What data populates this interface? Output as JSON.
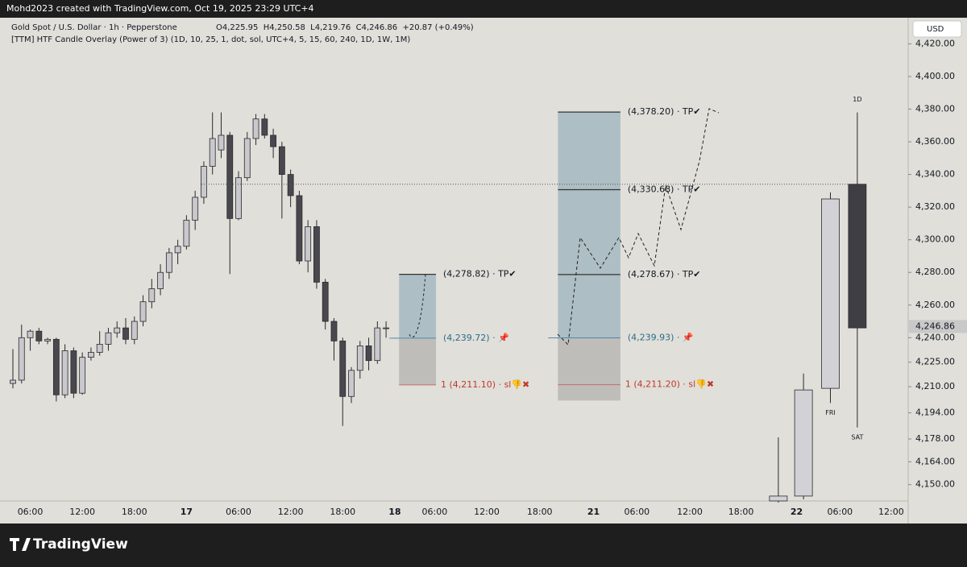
{
  "header": {
    "attribution": "Mohd2023 created with TradingView.com, Oct 19, 2025 23:29 UTC+4",
    "symbol_line": "Gold Spot / U.S. Dollar · 1h · Pepperstone",
    "ohlc_line": "O4,225.95  H4,250.58  L4,219.76  C4,246.86  +20.87 (+0.49%)",
    "indicator_line": "[TTM] HTF Candle Overlay (Power of 3) (1D, 10, 25, 1, dot, sol, UTC+4, 5, 15, 60, 240, 1D, 1W, 1M)",
    "currency": "USD"
  },
  "footer": {
    "brand": "TradingView"
  },
  "chart_data": {
    "type": "candlestick",
    "grid": false,
    "up_color": "#c8c8cd",
    "down_color": "#48484e",
    "xlim": [
      -1.486,
      103.16
    ],
    "ylim": [
      4140,
      4436
    ],
    "xticks": [
      {
        "value": 2,
        "label": "06:00"
      },
      {
        "value": 8,
        "label": "12:00"
      },
      {
        "value": 14,
        "label": "18:00"
      },
      {
        "value": 20,
        "label": "17"
      },
      {
        "value": 26,
        "label": "06:00"
      },
      {
        "value": 32,
        "label": "12:00"
      },
      {
        "value": 38,
        "label": "18:00"
      },
      {
        "value": 44,
        "label": "18"
      },
      {
        "value": 48.6,
        "label": "06:00"
      },
      {
        "value": 54.6,
        "label": "12:00"
      },
      {
        "value": 60.7,
        "label": "18:00"
      },
      {
        "value": 66.9,
        "label": "21"
      },
      {
        "value": 71.9,
        "label": "06:00"
      },
      {
        "value": 78,
        "label": "12:00"
      },
      {
        "value": 83.9,
        "label": "18:00"
      },
      {
        "value": 90.3,
        "label": "22"
      },
      {
        "value": 95.3,
        "label": "06:00"
      },
      {
        "value": 101.2,
        "label": "12:00"
      }
    ],
    "yticks": [
      {
        "value": 4420,
        "label": "4,420.00"
      },
      {
        "value": 4400,
        "label": "4,400.00"
      },
      {
        "value": 4380,
        "label": "4,380.00"
      },
      {
        "value": 4360,
        "label": "4,360.00"
      },
      {
        "value": 4340,
        "label": "4,340.00"
      },
      {
        "value": 4320,
        "label": "4,320.00"
      },
      {
        "value": 4300,
        "label": "4,300.00"
      },
      {
        "value": 4280,
        "label": "4,280.00"
      },
      {
        "value": 4260,
        "label": "4,260.00"
      },
      {
        "value": 4240,
        "label": "4,240.00"
      },
      {
        "value": 4225,
        "label": "4,225.00"
      },
      {
        "value": 4210,
        "label": "4,210.00"
      },
      {
        "value": 4194,
        "label": "4,194.00"
      },
      {
        "value": 4178,
        "label": "4,178.00"
      },
      {
        "value": 4164,
        "label": "4,164.00"
      },
      {
        "value": 4150,
        "label": "4,150.00"
      }
    ],
    "last_price": {
      "value": 4246.86,
      "label": "4,246.86"
    },
    "x": [
      0,
      1,
      2,
      3,
      4,
      5,
      6,
      7,
      8,
      9,
      10,
      11,
      12,
      13,
      14,
      15,
      16,
      17,
      18,
      19,
      20,
      21,
      22,
      23,
      24,
      25,
      26,
      27,
      28,
      29,
      30,
      31,
      32,
      33,
      34,
      35,
      36,
      37,
      38,
      39,
      40,
      41,
      42,
      43
    ],
    "ohlc": [
      [
        4212,
        4233,
        4209,
        4214
      ],
      [
        4214,
        4248,
        4212,
        4240
      ],
      [
        4240,
        4245,
        4232,
        4244
      ],
      [
        4244,
        4246,
        4236,
        4238
      ],
      [
        4238,
        4240,
        4236,
        4239
      ],
      [
        4239,
        4240,
        4201,
        4205
      ],
      [
        4205,
        4236,
        4203,
        4232
      ],
      [
        4232,
        4234,
        4203,
        4206
      ],
      [
        4206,
        4231,
        4205,
        4228
      ],
      [
        4228,
        4234,
        4226,
        4231
      ],
      [
        4231,
        4244,
        4229,
        4236
      ],
      [
        4236,
        4246,
        4232,
        4243
      ],
      [
        4243,
        4250,
        4240,
        4246
      ],
      [
        4246,
        4252,
        4236,
        4239
      ],
      [
        4239,
        4253,
        4236,
        4250
      ],
      [
        4250,
        4266,
        4247,
        4262
      ],
      [
        4262,
        4276,
        4258,
        4270
      ],
      [
        4270,
        4285,
        4266,
        4280
      ],
      [
        4280,
        4295,
        4276,
        4292
      ],
      [
        4292,
        4300,
        4285,
        4296
      ],
      [
        4296,
        4315,
        4294,
        4312
      ],
      [
        4312,
        4330,
        4306,
        4326
      ],
      [
        4326,
        4348,
        4322,
        4345
      ],
      [
        4345,
        4378,
        4340,
        4362
      ],
      [
        4355,
        4378,
        4350,
        4364
      ],
      [
        4364,
        4366,
        4279,
        4313
      ],
      [
        4313,
        4342,
        4312,
        4338
      ],
      [
        4338,
        4366,
        4336,
        4362
      ],
      [
        4362,
        4377,
        4358,
        4374
      ],
      [
        4374,
        4377,
        4362,
        4364
      ],
      [
        4364,
        4368,
        4350,
        4357
      ],
      [
        4357,
        4360,
        4313,
        4340
      ],
      [
        4340,
        4343,
        4320,
        4327
      ],
      [
        4327,
        4330,
        4285,
        4287
      ],
      [
        4287,
        4312,
        4280,
        4308
      ],
      [
        4308,
        4312,
        4270,
        4274
      ],
      [
        4274,
        4276,
        4245,
        4250
      ],
      [
        4250,
        4252,
        4226,
        4238
      ],
      [
        4238,
        4240,
        4186,
        4204
      ],
      [
        4204,
        4222,
        4200,
        4220
      ],
      [
        4220,
        4238,
        4215,
        4235
      ],
      [
        4235,
        4240,
        4220,
        4226
      ],
      [
        4226,
        4250,
        4224,
        4246
      ],
      [
        4246,
        4250,
        4240,
        4246
      ]
    ],
    "overlay": {
      "x": [
        88.2,
        91.1,
        94.2,
        97.3
      ],
      "ohlc": [
        [
          4140,
          4179,
          4139,
          4143
        ],
        [
          4143,
          4218,
          4141,
          4208
        ],
        [
          4209,
          4329,
          4200,
          4325
        ],
        [
          4334,
          4378,
          4185,
          4246
        ]
      ],
      "labels": [
        {
          "index": 2,
          "text": "FRI",
          "where": "below"
        },
        {
          "index": 3,
          "text": "SAT",
          "where": "below"
        },
        {
          "index": 3,
          "text": "1D",
          "where": "above"
        }
      ]
    },
    "positions": [
      {
        "x_range": [
          44.5,
          48.75
        ],
        "targets": [
          {
            "value": 4278.82,
            "label": "(4,278.82) · TP✔"
          }
        ],
        "entry": {
          "value": 4239.72,
          "label": "(4,239.72) · 📌"
        },
        "stop": {
          "value": 4211.1,
          "label": "1 (4,211.10) · sl👎✖"
        }
      },
      {
        "x_range": [
          62.8,
          70.0
        ],
        "targets": [
          {
            "value": 4378.2,
            "label": "(4,378.20) · TP✔"
          },
          {
            "value": 4330.68,
            "label": "(4,330.68) · TP✔"
          },
          {
            "value": 4278.67,
            "label": "(4,278.67) · TP✔"
          }
        ],
        "entry": {
          "value": 4239.93,
          "label": "(4,239.93) · 📌"
        },
        "stop": {
          "value": 4211.2,
          "label": "1 (4,211.20) · sl👎✖"
        },
        "bottom": 4201.5
      }
    ]
  }
}
